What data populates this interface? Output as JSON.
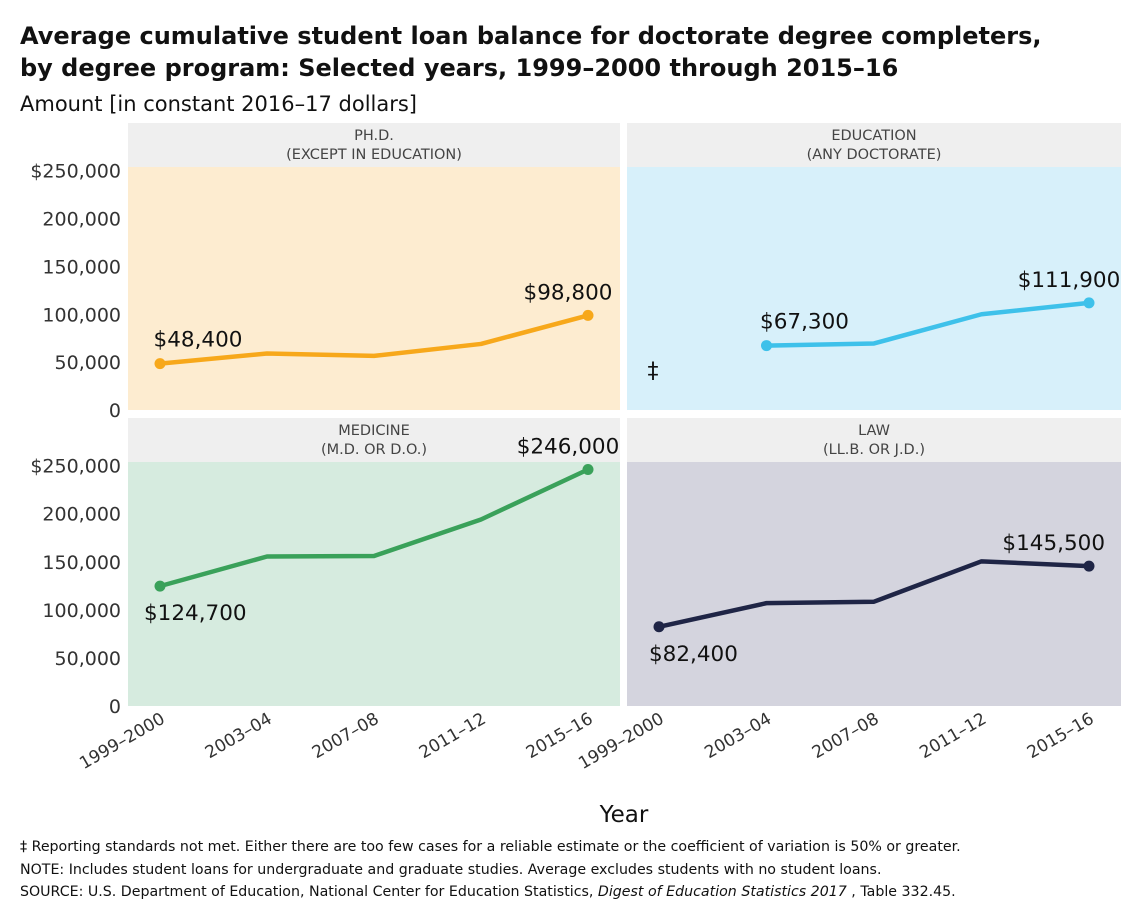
{
  "title_line1": "Average cumulative student loan balance for doctorate degree completers,",
  "title_line2": "by degree program: Selected years, 1999–2000 through 2015–16",
  "subtitle": "Amount [in constant 2016–17 dollars]",
  "footnotes": {
    "reporting": "‡ Reporting standards not met. Either there are too few cases for a reliable estimate or the coefficient of variation is 50% or greater.",
    "note": "NOTE: Includes student loans for undergraduate and graduate studies. Average excludes students with no student loans.",
    "source_prefix": "SOURCE: U.S. Department of Education, National Center for Education Statistics, ",
    "source_title": "Digest of Education Statistics 2017",
    "source_suffix": " , Table 332.45."
  },
  "chart_data": {
    "type": "line",
    "x": [
      "1999–2000",
      "2003–04",
      "2007–08",
      "2011–12",
      "2015–16"
    ],
    "xlabel": "Year",
    "ylim": [
      0,
      250000
    ],
    "yticks_top": [
      "$250,000",
      "200,000",
      "150,000",
      "100,000",
      "50,000",
      "0"
    ],
    "yticks_bottom": [
      "$250,000",
      "200,000",
      "150,000",
      "100,000",
      "50,000",
      "0"
    ],
    "reporting_symbol": "‡",
    "panels": [
      {
        "title_line1": "PH.D.",
        "title_line2": "(EXCEPT IN EDUCATION)",
        "color": "#f7a81b",
        "background": "#fdecd0",
        "values": [
          48400,
          59000,
          56500,
          69000,
          98800
        ],
        "labels": [
          {
            "index": 0,
            "text": "$48,400"
          },
          {
            "index": 4,
            "text": "$98,800"
          }
        ]
      },
      {
        "title_line1": "EDUCATION",
        "title_line2": "(ANY DOCTORATE)",
        "color": "#3ec1ea",
        "background": "#d7f0fa",
        "values": [
          null,
          67300,
          69500,
          100000,
          111900
        ],
        "labels": [
          {
            "index": 1,
            "text": "$67,300"
          },
          {
            "index": 4,
            "text": "$111,900"
          }
        ]
      },
      {
        "title_line1": "MEDICINE",
        "title_line2": "(M.D. OR D.O.)",
        "color": "#3aa15a",
        "background": "#d6ebdf",
        "values": [
          124700,
          155500,
          156000,
          194000,
          246000
        ],
        "labels": [
          {
            "index": 0,
            "text": "$124,700"
          },
          {
            "index": 4,
            "text": "$246,000"
          }
        ]
      },
      {
        "title_line1": "LAW",
        "title_line2": "(LL.B. OR J.D.)",
        "color": "#1f2546",
        "background": "#d4d4de",
        "values": [
          82400,
          107000,
          108500,
          150500,
          145500
        ],
        "labels": [
          {
            "index": 0,
            "text": "$82,400"
          },
          {
            "index": 4,
            "text": "$145,500"
          }
        ]
      }
    ]
  }
}
